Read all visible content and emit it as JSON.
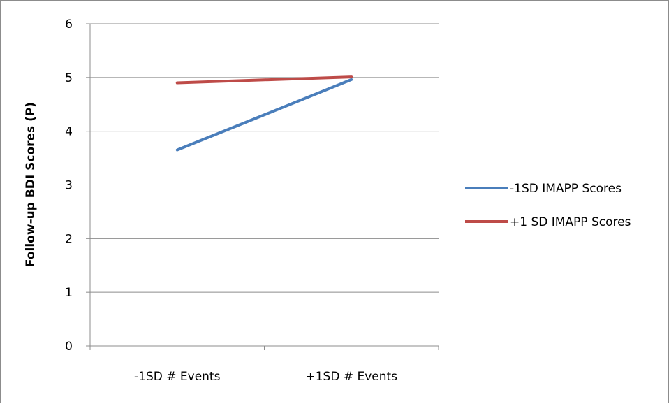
{
  "chart_data": {
    "type": "line",
    "title": "",
    "xlabel": "",
    "ylabel": "Follow-up BDI Scores (P)",
    "categories": [
      "-1SD # Events",
      "+1SD # Events"
    ],
    "ylim": [
      0,
      6
    ],
    "yticks": [
      "0",
      "1",
      "2",
      "3",
      "4",
      "5",
      "6"
    ],
    "grid": "horizontal",
    "legend_position": "right",
    "series": [
      {
        "name": "-1SD IMAPP Scores",
        "values": [
          3.65,
          4.96
        ],
        "color": "#4a7ebb"
      },
      {
        "name": "+1 SD IMAPP Scores",
        "values": [
          4.9,
          5.01
        ],
        "color": "#be4b48"
      }
    ]
  }
}
